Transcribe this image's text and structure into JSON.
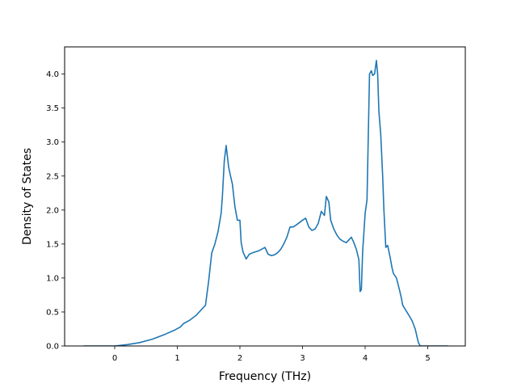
{
  "chart_data": {
    "type": "line",
    "title": "",
    "xlabel": "Frequency (THz)",
    "ylabel": "Density of States",
    "xlim": [
      -0.8,
      5.6
    ],
    "ylim": [
      0.0,
      4.4
    ],
    "grid": false,
    "legend": "none",
    "x_ticks": [
      0,
      1,
      2,
      3,
      4,
      5
    ],
    "x_tick_labels": [
      "0",
      "1",
      "2",
      "3",
      "4",
      "5"
    ],
    "y_ticks": [
      0.0,
      0.5,
      1.0,
      1.5,
      2.0,
      2.5,
      3.0,
      3.5,
      4.0
    ],
    "y_tick_labels": [
      "0.0",
      "0.5",
      "1.0",
      "1.5",
      "2.0",
      "2.5",
      "3.0",
      "3.5",
      "4.0"
    ],
    "series": [
      {
        "color": "#1f77b4",
        "x": [
          -0.5,
          0.0,
          0.2,
          0.4,
          0.6,
          0.8,
          0.95,
          1.05,
          1.1,
          1.2,
          1.3,
          1.4,
          1.45,
          1.5,
          1.55,
          1.6,
          1.65,
          1.7,
          1.72,
          1.75,
          1.78,
          1.82,
          1.85,
          1.88,
          1.92,
          1.96,
          2.0,
          2.02,
          2.05,
          2.1,
          2.15,
          2.2,
          2.3,
          2.4,
          2.45,
          2.5,
          2.55,
          2.6,
          2.65,
          2.7,
          2.75,
          2.8,
          2.85,
          2.9,
          3.0,
          3.05,
          3.1,
          3.15,
          3.2,
          3.25,
          3.3,
          3.35,
          3.38,
          3.42,
          3.45,
          3.5,
          3.55,
          3.6,
          3.65,
          3.7,
          3.75,
          3.78,
          3.82,
          3.86,
          3.9,
          3.92,
          3.94,
          3.96,
          4.0,
          4.03,
          4.07,
          4.1,
          4.12,
          4.15,
          4.18,
          4.2,
          4.22,
          4.25,
          4.28,
          4.3,
          4.33,
          4.36,
          4.4,
          4.43,
          4.45,
          4.5,
          4.55,
          4.58,
          4.6,
          4.7,
          4.75,
          4.8,
          4.85,
          4.88,
          5.0,
          5.33
        ],
        "y": [
          0.0,
          0.0,
          0.02,
          0.05,
          0.1,
          0.17,
          0.23,
          0.28,
          0.33,
          0.38,
          0.45,
          0.55,
          0.6,
          0.95,
          1.37,
          1.5,
          1.68,
          1.95,
          2.2,
          2.72,
          2.95,
          2.63,
          2.5,
          2.38,
          2.05,
          1.85,
          1.85,
          1.52,
          1.38,
          1.28,
          1.35,
          1.37,
          1.4,
          1.45,
          1.35,
          1.33,
          1.34,
          1.37,
          1.42,
          1.5,
          1.6,
          1.75,
          1.75,
          1.78,
          1.85,
          1.88,
          1.75,
          1.7,
          1.72,
          1.8,
          1.98,
          1.92,
          2.2,
          2.12,
          1.85,
          1.72,
          1.63,
          1.57,
          1.54,
          1.52,
          1.57,
          1.6,
          1.52,
          1.42,
          1.27,
          0.8,
          0.83,
          1.38,
          1.95,
          2.15,
          4.0,
          4.05,
          3.98,
          4.0,
          4.2,
          4.0,
          3.45,
          3.1,
          2.5,
          2.0,
          1.45,
          1.48,
          1.3,
          1.15,
          1.07,
          1.0,
          0.82,
          0.7,
          0.6,
          0.45,
          0.37,
          0.25,
          0.05,
          0.0,
          0.0,
          0.0
        ]
      }
    ]
  }
}
